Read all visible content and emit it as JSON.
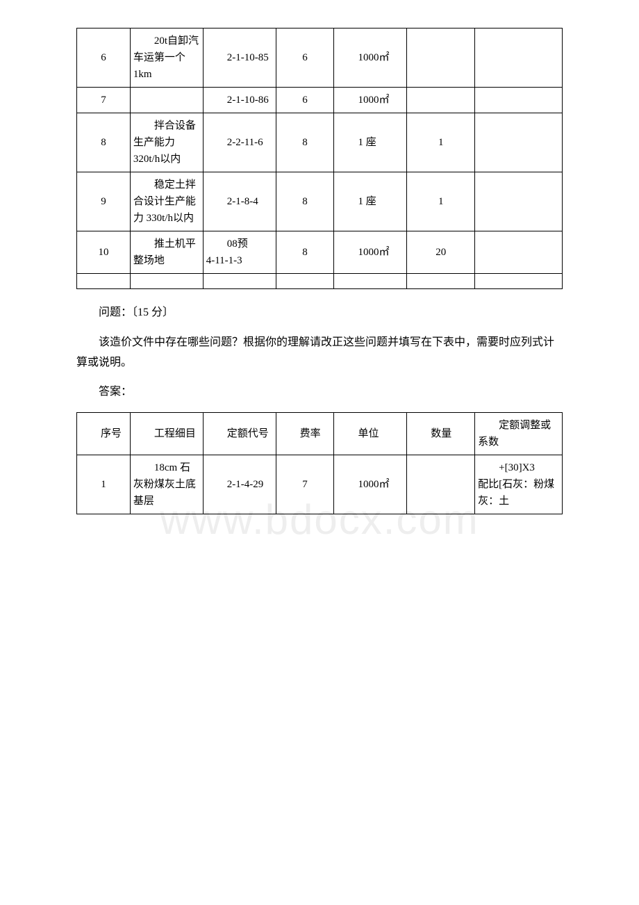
{
  "table1": {
    "rows": [
      {
        "no": "6",
        "item": "20t自卸汽车运第一个1km",
        "code": "2-1-10-85",
        "rate": "6",
        "unit": "1000㎡",
        "qty": "",
        "adj": ""
      },
      {
        "no": "7",
        "item": "",
        "code": "2-1-10-86",
        "rate": "6",
        "unit": "1000㎡",
        "qty": "",
        "adj": ""
      },
      {
        "no": "8",
        "item": "拌合设备生产能力 320t/h以内",
        "code": "2-2-11-6",
        "rate": "8",
        "unit": "1 座",
        "qty": "1",
        "adj": ""
      },
      {
        "no": "9",
        "item": "稳定土拌合设计生产能力 330t/h以内",
        "code": "2-1-8-4",
        "rate": "8",
        "unit": "1 座",
        "qty": "1",
        "adj": ""
      },
      {
        "no": "10",
        "item": "推土机平整场地",
        "code": "08预\n4-11-1-3",
        "rate": "8",
        "unit": "1000㎡",
        "qty": "20",
        "adj": ""
      }
    ]
  },
  "question": {
    "title": "问题：〔15 分〕",
    "body": "该造价文件中存在哪些问题？根据你的理解请改正这些问题并填写在下表中，需要时应列式计算或说明。",
    "answer_label": "答案："
  },
  "table2": {
    "headers": {
      "no": "序号",
      "item": "工程细目",
      "code": "定额代号",
      "rate": "费率",
      "unit": "单位",
      "qty": "数量",
      "adj": "定额调整或系数"
    },
    "rows": [
      {
        "no": "1",
        "item": "18cm 石灰粉煤灰土底基层",
        "code": "2-1-4-29",
        "rate": "7",
        "unit": "1000㎡",
        "qty": "",
        "adj": "+[30]X3\n配比[石灰：粉煤灰：土"
      }
    ]
  },
  "watermark_text": "www.bdocx.com"
}
